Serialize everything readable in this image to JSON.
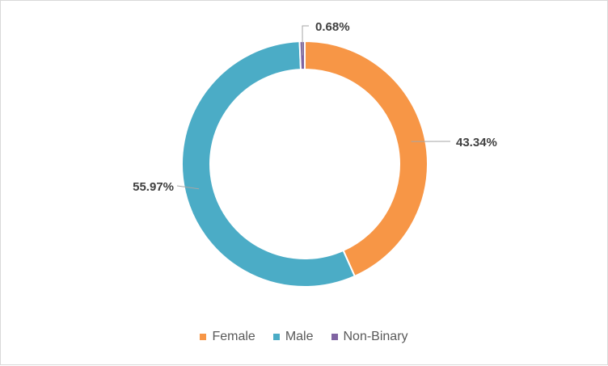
{
  "chart_data": {
    "type": "pie",
    "donut": true,
    "categories": [
      "Female",
      "Male",
      "Non-Binary"
    ],
    "values": [
      43.34,
      55.97,
      0.68
    ],
    "data_labels": [
      "43.34%",
      "55.97%",
      "0.68%"
    ],
    "colors": [
      "#f79646",
      "#4bacc6",
      "#8064a2"
    ],
    "legend_position": "bottom",
    "start_angle_deg": 0,
    "direction": "clockwise"
  }
}
